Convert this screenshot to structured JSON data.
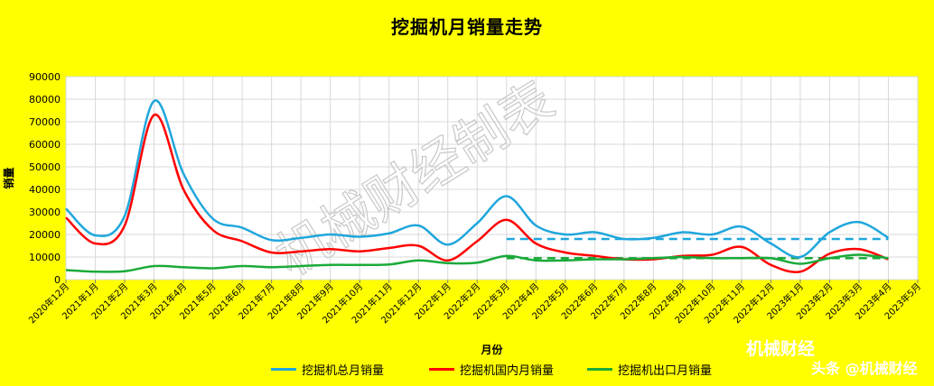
{
  "chart_data": {
    "type": "line",
    "title": "挖掘机月销量走势",
    "xlabel": "月份",
    "ylabel": "销量",
    "ylim": [
      0,
      90000
    ],
    "yticks": [
      "0",
      "10000",
      "20000",
      "30000",
      "40000",
      "50000",
      "60000",
      "70000",
      "80000",
      "90000"
    ],
    "grid": true,
    "legend_position": "bottom",
    "categories": [
      "2020年12月",
      "2021年1月",
      "2021年2月",
      "2021年3月",
      "2021年4月",
      "2021年5月",
      "2021年6月",
      "2021年7月",
      "2021年8月",
      "2021年9月",
      "2021年10月",
      "2021年11月",
      "2021年12月",
      "2022年1月",
      "2022年2月",
      "2022年3月",
      "2022年4月",
      "2022年5月",
      "2022年6月",
      "2022年7月",
      "2022年8月",
      "2022年9月",
      "2022年10月",
      "2022年11月",
      "2022年12月",
      "2023年1月",
      "2023年2月",
      "2023年3月",
      "2023年4月",
      "2023年5月"
    ],
    "series": [
      {
        "name": "挖掘机总月销量",
        "color": "#1FA6DC",
        "values": [
          31500,
          19600,
          28300,
          79200,
          47000,
          27000,
          23000,
          17500,
          18500,
          20000,
          19000,
          20500,
          24000,
          15500,
          25000,
          37000,
          24000,
          20000,
          21000,
          18000,
          18500,
          21000,
          20000,
          23500,
          16000,
          10000,
          21000,
          25500,
          18500,
          null
        ]
      },
      {
        "name": "挖掘机国内月销量",
        "color": "#FF0000",
        "values": [
          27500,
          16000,
          24000,
          73000,
          40000,
          22000,
          17000,
          12000,
          12500,
          13500,
          12500,
          14000,
          15000,
          8500,
          17000,
          26500,
          16000,
          12000,
          10500,
          9000,
          9000,
          10500,
          11000,
          14500,
          6500,
          3500,
          11500,
          13500,
          9000,
          null
        ]
      },
      {
        "name": "挖掘机出口月销量",
        "color": "#1AAA3A",
        "values": [
          4200,
          3500,
          3700,
          6000,
          5500,
          5000,
          6000,
          5500,
          6000,
          6500,
          6500,
          6700,
          8500,
          7300,
          7500,
          10500,
          8500,
          8500,
          9000,
          9000,
          9500,
          10000,
          9500,
          9500,
          9500,
          7000,
          9500,
          11000,
          9500,
          null
        ]
      }
    ],
    "trend_lines": [
      {
        "color": "#1FA6DC",
        "from_category": "2022年3月",
        "to_category": "2023年4月",
        "value": 18000
      },
      {
        "color": "#1AAA3A",
        "from_category": "2022年3月",
        "to_category": "2023年4月",
        "value": 9500
      }
    ],
    "watermark": "机械财经制表"
  },
  "brand": {
    "line1": "机械财经",
    "line2": "头条 @机械财经"
  },
  "colors": {
    "background": "#FFFF00",
    "plot_background": "#FFFFFF",
    "grid": "#D9D9D9"
  }
}
